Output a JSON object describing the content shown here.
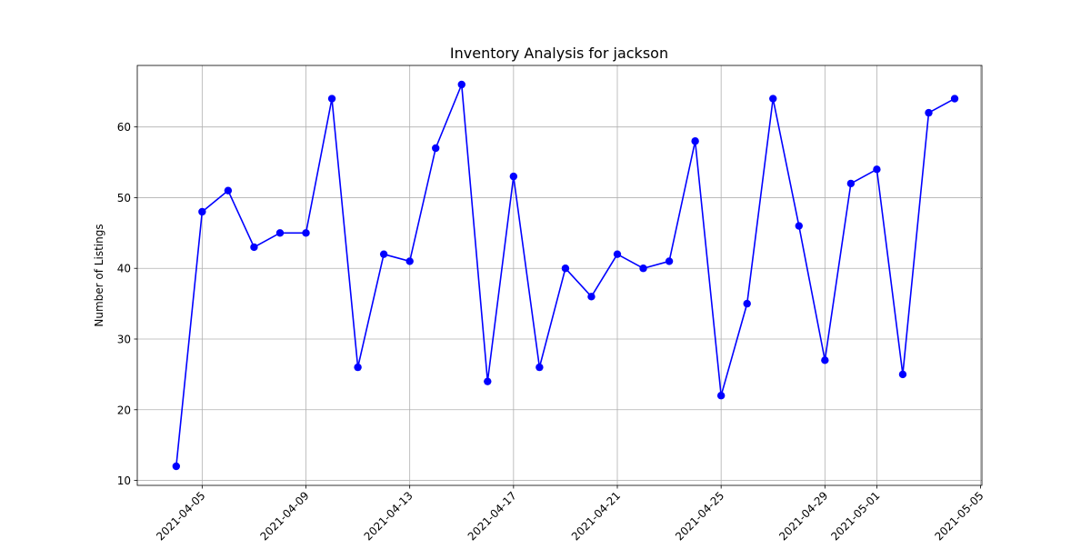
{
  "chart_data": {
    "type": "line",
    "title": "Inventory Analysis for jackson",
    "xlabel": "",
    "ylabel": "Number of Listings",
    "x": [
      "2021-04-04",
      "2021-04-05",
      "2021-04-06",
      "2021-04-07",
      "2021-04-08",
      "2021-04-09",
      "2021-04-10",
      "2021-04-11",
      "2021-04-12",
      "2021-04-13",
      "2021-04-14",
      "2021-04-15",
      "2021-04-16",
      "2021-04-17",
      "2021-04-18",
      "2021-04-19",
      "2021-04-20",
      "2021-04-21",
      "2021-04-22",
      "2021-04-23",
      "2021-04-24",
      "2021-04-25",
      "2021-04-26",
      "2021-04-27",
      "2021-04-28",
      "2021-04-29",
      "2021-04-30",
      "2021-05-01",
      "2021-05-02",
      "2021-05-03",
      "2021-05-04"
    ],
    "series": [
      {
        "values": [
          12,
          48,
          51,
          43,
          45,
          45,
          64,
          26,
          42,
          41,
          57,
          66,
          24,
          53,
          26,
          40,
          36,
          42,
          40,
          41,
          58,
          22,
          35,
          64,
          46,
          27,
          52,
          54,
          25,
          62,
          64
        ],
        "color": "#0000ff",
        "marker": "circle"
      }
    ],
    "xticks": [
      "2021-04-05",
      "2021-04-09",
      "2021-04-13",
      "2021-04-17",
      "2021-04-21",
      "2021-04-25",
      "2021-04-29",
      "2021-05-01",
      "2021-05-05"
    ],
    "yticks": [
      10,
      20,
      30,
      40,
      50,
      60
    ],
    "xlim": [
      "2021-04-02",
      "2021-05-05"
    ],
    "ylim": [
      9.3,
      68.7
    ],
    "grid": true,
    "grid_color": "#b0b0b0",
    "legend": "none"
  }
}
